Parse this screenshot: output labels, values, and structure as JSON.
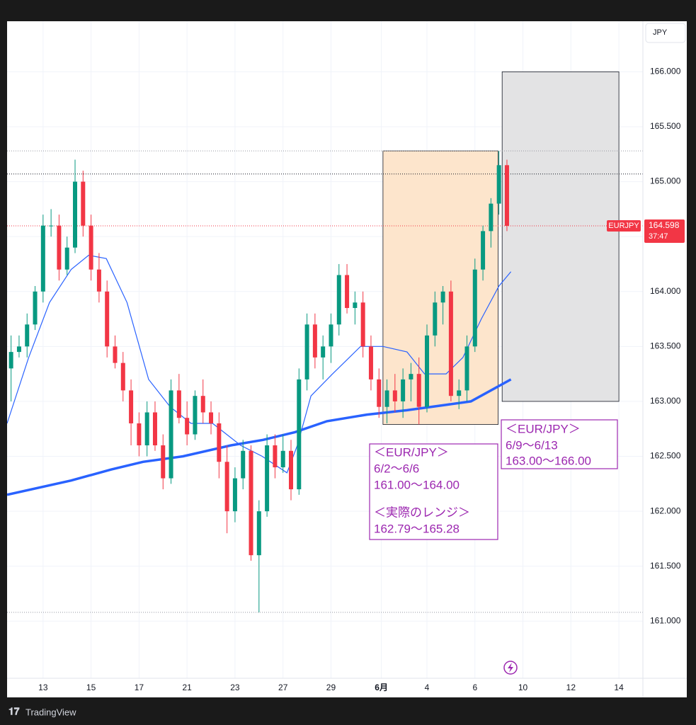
{
  "chart_data": {
    "type": "candlestick",
    "symbol": "EURJPY",
    "currency": "JPY",
    "countdown": "37:47",
    "brand": "TradingView",
    "up_color": "#089981",
    "down_color": "#f23645",
    "open": [
      163.3,
      163.45,
      163.5,
      163.7,
      164.0,
      164.6,
      164.6,
      164.2,
      164.4,
      165.0,
      164.6,
      164.2,
      164.0,
      163.5,
      163.35,
      163.1,
      162.8,
      162.6,
      162.9,
      162.6,
      162.3,
      163.1,
      162.85,
      162.7,
      163.05,
      162.9,
      162.8,
      162.45,
      162.0,
      162.3,
      162.55,
      161.6,
      162.0,
      162.6,
      162.4,
      162.55,
      162.2,
      163.2,
      163.7,
      163.4,
      163.5,
      163.7,
      164.15,
      163.85,
      163.9,
      163.5,
      163.2,
      162.95,
      163.1,
      163.0,
      163.2,
      163.25,
      162.95,
      163.6,
      163.9,
      164.0,
      163.05,
      163.1,
      163.5,
      164.2,
      164.55,
      164.8,
      165.15
    ],
    "high": [
      163.6,
      163.6,
      163.8,
      164.05,
      164.7,
      164.75,
      164.7,
      164.5,
      165.2,
      165.1,
      164.7,
      164.35,
      164.1,
      163.6,
      163.45,
      163.2,
      162.9,
      163.0,
      163.0,
      162.7,
      163.2,
      163.25,
      163.0,
      163.1,
      163.2,
      163.0,
      162.9,
      162.6,
      162.4,
      162.65,
      162.6,
      162.1,
      162.7,
      162.7,
      162.7,
      162.65,
      163.3,
      163.8,
      163.8,
      163.6,
      163.8,
      164.25,
      164.25,
      164.0,
      164.0,
      163.6,
      163.3,
      163.2,
      163.25,
      163.3,
      163.35,
      163.4,
      163.7,
      164.0,
      164.05,
      164.1,
      163.2,
      163.6,
      164.3,
      164.6,
      164.85,
      165.28,
      165.2
    ],
    "low": [
      163.0,
      163.4,
      163.4,
      163.65,
      163.9,
      164.5,
      164.1,
      164.15,
      164.35,
      164.5,
      164.1,
      163.9,
      163.4,
      163.3,
      163.0,
      162.6,
      162.5,
      162.5,
      162.55,
      162.2,
      162.25,
      162.8,
      162.6,
      162.65,
      162.8,
      162.7,
      162.3,
      161.8,
      161.9,
      162.2,
      161.55,
      161.08,
      161.95,
      162.3,
      162.35,
      162.1,
      162.15,
      163.1,
      163.3,
      163.2,
      163.35,
      163.6,
      163.8,
      163.7,
      163.4,
      163.1,
      162.85,
      162.8,
      162.9,
      162.85,
      163.0,
      162.79,
      162.9,
      163.5,
      163.7,
      163.0,
      162.93,
      163.0,
      163.45,
      164.1,
      164.4,
      164.7,
      164.55
    ],
    "close": [
      163.45,
      163.5,
      163.7,
      164.0,
      164.6,
      164.6,
      164.2,
      164.4,
      165.0,
      164.6,
      164.2,
      164.0,
      163.5,
      163.35,
      163.1,
      162.8,
      162.6,
      162.9,
      162.6,
      162.3,
      163.1,
      162.85,
      162.7,
      163.05,
      162.9,
      162.8,
      162.45,
      162.0,
      162.3,
      162.55,
      161.6,
      162.0,
      162.6,
      162.4,
      162.55,
      162.2,
      163.2,
      163.7,
      163.4,
      163.5,
      163.7,
      164.15,
      163.85,
      163.9,
      163.5,
      163.2,
      162.95,
      163.1,
      163.0,
      163.2,
      163.25,
      162.95,
      163.6,
      163.9,
      164.0,
      163.05,
      163.1,
      163.5,
      164.2,
      164.55,
      164.8,
      165.15,
      164.598
    ],
    "lines": [
      {
        "color": "#2962ff",
        "width": 1.2,
        "x": [
          0,
          2.7,
          5.3,
          8,
          10.2,
          12.4,
          15,
          17.7,
          20.4,
          23,
          25.7,
          29.2,
          31.9,
          35,
          36.3,
          38,
          40.7,
          44.2,
          47,
          50,
          52.2,
          54.9,
          57,
          59.3,
          61.5,
          63
        ],
        "values": [
          162.8,
          163.4,
          163.9,
          164.2,
          164.33,
          164.3,
          163.9,
          163.2,
          162.95,
          162.8,
          162.8,
          162.6,
          162.5,
          162.35,
          162.6,
          163.05,
          163.25,
          163.5,
          163.5,
          163.45,
          163.25,
          163.25,
          163.4,
          163.75,
          164.05,
          164.18
        ]
      },
      {
        "color": "#2962ff",
        "width": 3.5,
        "x": [
          0,
          8,
          13,
          17,
          22,
          28,
          32,
          36,
          40,
          45,
          50,
          55,
          58,
          61,
          63
        ],
        "values": [
          162.15,
          162.28,
          162.38,
          162.45,
          162.5,
          162.6,
          162.65,
          162.72,
          162.82,
          162.88,
          162.92,
          162.97,
          163.0,
          163.12,
          163.2
        ]
      }
    ],
    "price_lines": [
      {
        "value": 165.28,
        "color": "#9598a1"
      },
      {
        "value": 165.07,
        "color": "#131722"
      },
      {
        "value": 161.08,
        "color": "#9598a1"
      }
    ],
    "boxes": [
      {
        "x": [
          47.0,
          61.4
        ],
        "y": [
          162.79,
          165.28
        ],
        "fill": "#fde5cc",
        "stroke": "#131722"
      },
      {
        "x": [
          61.9,
          76.5
        ],
        "y": [
          163.0,
          166.0
        ],
        "fill": "#e3e3e4",
        "stroke": "#131722"
      }
    ],
    "annotations": [
      {
        "lines": [
          "＜EUR/JPY＞",
          "6/2～6/6",
          "161.00～164.00",
          "＜実際のレンジ＞",
          "162.79～165.28"
        ]
      },
      {
        "lines": [
          "＜EUR/JPY＞",
          "6/9～6/13",
          "163.00～166.00"
        ]
      }
    ],
    "xlim": [
      0,
      79.5
    ],
    "xticks": [
      {
        "value": 4.5,
        "label": "13"
      },
      {
        "value": 10.5,
        "label": "15"
      },
      {
        "value": 16.5,
        "label": "17"
      },
      {
        "value": 22.5,
        "label": "21"
      },
      {
        "value": 28.5,
        "label": "23"
      },
      {
        "value": 34.5,
        "label": "27"
      },
      {
        "value": 40.5,
        "label": "29"
      },
      {
        "value": 46.8,
        "label": "6月"
      },
      {
        "value": 52.5,
        "label": "4"
      },
      {
        "value": 58.5,
        "label": "6"
      },
      {
        "value": 64.5,
        "label": "10"
      },
      {
        "value": 70.5,
        "label": "12"
      },
      {
        "value": 76.5,
        "label": "14"
      }
    ],
    "ylim": [
      160.48,
      166.46
    ],
    "yticks": [
      {
        "value": 161,
        "label": "161.000"
      },
      {
        "value": 161.5,
        "label": "161.500"
      },
      {
        "value": 162,
        "label": "162.000"
      },
      {
        "value": 162.5,
        "label": "162.500"
      },
      {
        "value": 163,
        "label": "163.000"
      },
      {
        "value": 163.5,
        "label": "163.500"
      },
      {
        "value": 164,
        "label": "164.000"
      },
      {
        "value": 164.5,
        "label": "164.500"
      },
      {
        "value": 165,
        "label": "165.000"
      },
      {
        "value": 165.5,
        "label": "165.500"
      },
      {
        "value": 166,
        "label": "166.000"
      }
    ],
    "grid": true
  }
}
